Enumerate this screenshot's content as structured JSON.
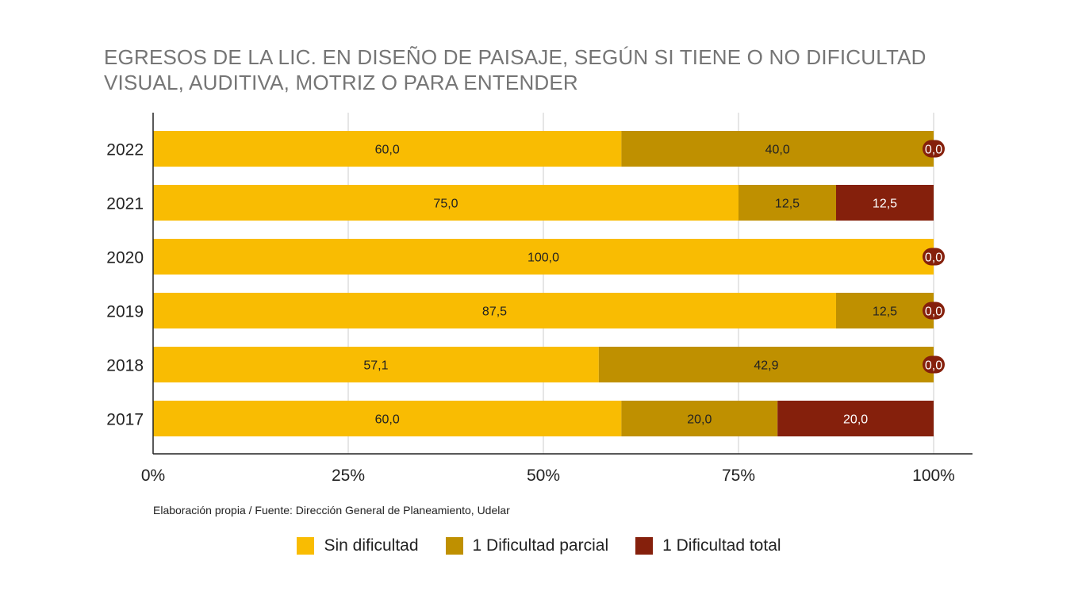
{
  "chart_data": {
    "type": "bar",
    "orientation": "horizontal",
    "stacked": true,
    "title_lines": [
      "EGRESOS DE LA LIC. EN DISEÑO DE PAISAJE, SEGÚN SI TIENE O NO DIFICULTAD",
      "VISUAL, AUDITIVA, MOTRIZ O PARA ENTENDER"
    ],
    "categories": [
      "2022",
      "2021",
      "2020",
      "2019",
      "2018",
      "2017"
    ],
    "series": [
      {
        "name": "Sin dificultad",
        "color": "#F9BC02",
        "label_color": "#222222",
        "values": [
          60.0,
          75.0,
          100.0,
          87.5,
          57.1,
          60.0
        ],
        "labels": [
          "60,0",
          "75,0",
          "100,0",
          "87,5",
          "57,1",
          "60,0"
        ]
      },
      {
        "name": "1 Dificultad parcial",
        "color": "#BF9000",
        "label_color": "#222222",
        "values": [
          40.0,
          12.5,
          0.0,
          12.5,
          42.9,
          20.0
        ],
        "labels": [
          "40,0",
          "12,5",
          "",
          "12,5",
          "42,9",
          "20,0"
        ]
      },
      {
        "name": "1 Dificultad total",
        "color": "#85200C",
        "label_color": "#ffffff",
        "values": [
          0.0,
          12.5,
          0.0,
          0.0,
          0.0,
          20.0
        ],
        "labels": [
          "0,0",
          "12,5",
          "0,0",
          "0,0",
          "0,0",
          "20,0"
        ]
      }
    ],
    "x_ticks": [
      "0%",
      "25%",
      "50%",
      "75%",
      "100%"
    ],
    "xlim": [
      0,
      100
    ],
    "grid": true,
    "legend_position": "bottom"
  },
  "source": "Elaboración propia / Fuente: Dirección General de Planeamiento, Udelar"
}
